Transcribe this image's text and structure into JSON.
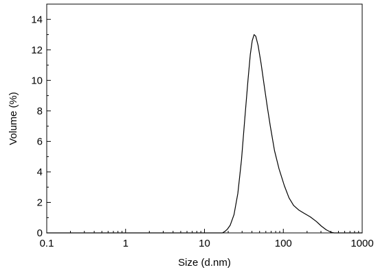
{
  "chart_data": {
    "type": "line",
    "title": "",
    "xlabel": "Size (d.nm)",
    "ylabel": "Volume (%)",
    "x_scale": "log",
    "xlim": [
      0.1,
      1000
    ],
    "ylim": [
      0,
      15
    ],
    "x_ticks": [
      {
        "value": 0.1,
        "label": "0.1"
      },
      {
        "value": 1,
        "label": "1"
      },
      {
        "value": 10,
        "label": "10"
      },
      {
        "value": 100,
        "label": "100"
      },
      {
        "value": 1000,
        "label": "1000"
      }
    ],
    "y_ticks": [
      {
        "value": 0,
        "label": "0"
      },
      {
        "value": 2,
        "label": "2"
      },
      {
        "value": 4,
        "label": "4"
      },
      {
        "value": 6,
        "label": "6"
      },
      {
        "value": 8,
        "label": "8"
      },
      {
        "value": 10,
        "label": "10"
      },
      {
        "value": 12,
        "label": "12"
      },
      {
        "value": 14,
        "label": "14"
      }
    ],
    "grid": false,
    "legend": "none",
    "series": [
      {
        "color": "#000000",
        "points": [
          [
            0.1,
            0
          ],
          [
            10,
            0
          ],
          [
            16.9,
            0
          ],
          [
            18.2,
            0.1
          ],
          [
            19.6,
            0.25
          ],
          [
            21.2,
            0.5
          ],
          [
            23.7,
            1.2
          ],
          [
            26.5,
            2.6
          ],
          [
            29.5,
            4.8
          ],
          [
            32.5,
            7.5
          ],
          [
            35.6,
            10.0
          ],
          [
            38.1,
            11.7
          ],
          [
            40.3,
            12.6
          ],
          [
            42.6,
            13.0
          ],
          [
            44.7,
            12.9
          ],
          [
            47.8,
            12.3
          ],
          [
            52.2,
            11.1
          ],
          [
            57.1,
            9.7
          ],
          [
            62.5,
            8.3
          ],
          [
            68.4,
            7.0
          ],
          [
            77.2,
            5.4
          ],
          [
            88.2,
            4.2
          ],
          [
            103,
            3.1
          ],
          [
            118,
            2.3
          ],
          [
            135,
            1.8
          ],
          [
            157,
            1.5
          ],
          [
            182,
            1.3
          ],
          [
            220,
            1.05
          ],
          [
            262,
            0.75
          ],
          [
            303,
            0.45
          ],
          [
            350,
            0.2
          ],
          [
            400,
            0.05
          ],
          [
            440,
            0
          ],
          [
            1000,
            0
          ]
        ]
      }
    ]
  }
}
